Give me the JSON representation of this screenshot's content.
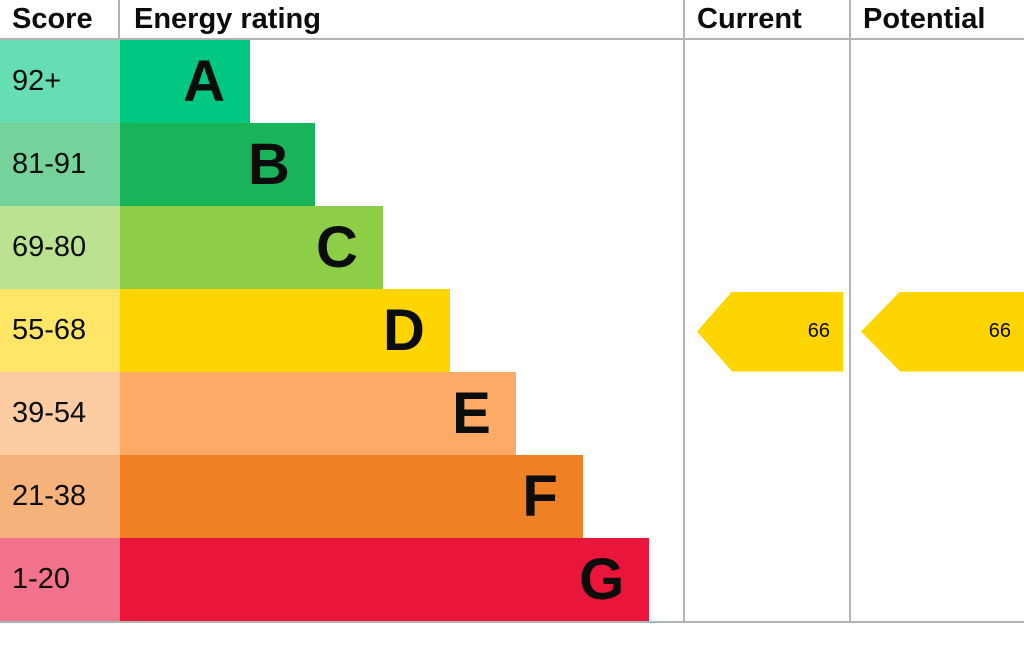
{
  "header": {
    "score_label": "Score",
    "energy_rating_label": "Energy rating",
    "current_label": "Current",
    "potential_label": "Potential"
  },
  "bands": [
    {
      "score_range": "92+",
      "letter": "A",
      "color": "#00c781",
      "tint_color": "#66ddb3",
      "width_pct": 23.1
    },
    {
      "score_range": "81-91",
      "letter": "B",
      "color": "#19b459",
      "tint_color": "#75d29b",
      "width_pct": 34.6
    },
    {
      "score_range": "69-80",
      "letter": "C",
      "color": "#8dce46",
      "tint_color": "#bbe290",
      "width_pct": 46.7
    },
    {
      "score_range": "55-68",
      "letter": "D",
      "color": "#ffd500",
      "tint_color": "#ffe666",
      "width_pct": 58.6
    },
    {
      "score_range": "39-54",
      "letter": "E",
      "color": "#fcaa65",
      "tint_color": "#fdcca3",
      "width_pct": 70.3
    },
    {
      "score_range": "21-38",
      "letter": "F",
      "color": "#ef8023",
      "tint_color": "#f5b37b",
      "width_pct": 82.2
    },
    {
      "score_range": "1-20",
      "letter": "G",
      "color": "#e9153b",
      "tint_color": "#f2728c",
      "width_pct": 94.0
    }
  ],
  "current": {
    "value": "66",
    "band_letter": "D",
    "band_index": 3,
    "color": "#ffd500"
  },
  "potential": {
    "value": "66",
    "band_letter": "D",
    "band_index": 3,
    "color": "#ffd500"
  },
  "chart_data": {
    "type": "bar",
    "title": "Energy rating",
    "categories": [
      "A",
      "B",
      "C",
      "D",
      "E",
      "F",
      "G"
    ],
    "category_score_ranges": [
      "92+",
      "81-91",
      "69-80",
      "55-68",
      "39-54",
      "21-38",
      "1-20"
    ],
    "band_colors": [
      "#00c781",
      "#19b459",
      "#8dce46",
      "#ffd500",
      "#fcaa65",
      "#ef8023",
      "#e9153b"
    ],
    "bar_relative_widths_pct": [
      23.1,
      34.6,
      46.7,
      58.6,
      70.3,
      82.2,
      94.0
    ],
    "current_rating": 66,
    "current_band": "D",
    "potential_rating": 66,
    "potential_band": "D",
    "legend_position": "none",
    "grid": false
  }
}
